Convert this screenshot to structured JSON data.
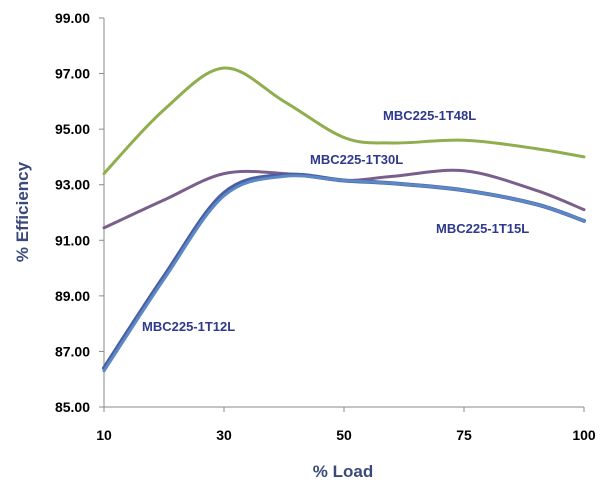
{
  "chart_data": {
    "type": "line",
    "title": "",
    "xlabel": "% Load",
    "ylabel": "% Efficiency",
    "x": [
      10,
      20,
      30,
      40,
      50,
      60,
      75,
      90,
      100
    ],
    "xticks": [
      "10",
      "30",
      "50",
      "75",
      "100"
    ],
    "yticks": [
      "85.00",
      "87.00",
      "89.00",
      "91.00",
      "93.00",
      "95.00",
      "97.00",
      "99.00"
    ],
    "ylim": [
      85,
      99
    ],
    "grid": false,
    "legend": "inline-labels",
    "series": [
      {
        "name": "MBC225-1T48L",
        "color": "#8FAE4E",
        "values": [
          93.4,
          95.7,
          97.2,
          96.0,
          94.7,
          94.5,
          94.6,
          94.3,
          94.0
        ]
      },
      {
        "name": "MBC225-1T30L",
        "color": "#7A5F8A",
        "values": [
          91.45,
          92.45,
          93.4,
          93.4,
          93.15,
          93.3,
          93.5,
          92.8,
          92.1
        ]
      },
      {
        "name": "MBC225-1T15L",
        "color": "#4A5EA0",
        "values": [
          86.4,
          89.7,
          92.7,
          93.35,
          93.15,
          93.05,
          92.8,
          92.3,
          91.7
        ]
      },
      {
        "name": "MBC225-1T12L",
        "color": "#5B88C6",
        "values": [
          86.3,
          89.6,
          92.6,
          93.3,
          93.15,
          93.05,
          92.8,
          92.3,
          91.7
        ]
      }
    ]
  }
}
